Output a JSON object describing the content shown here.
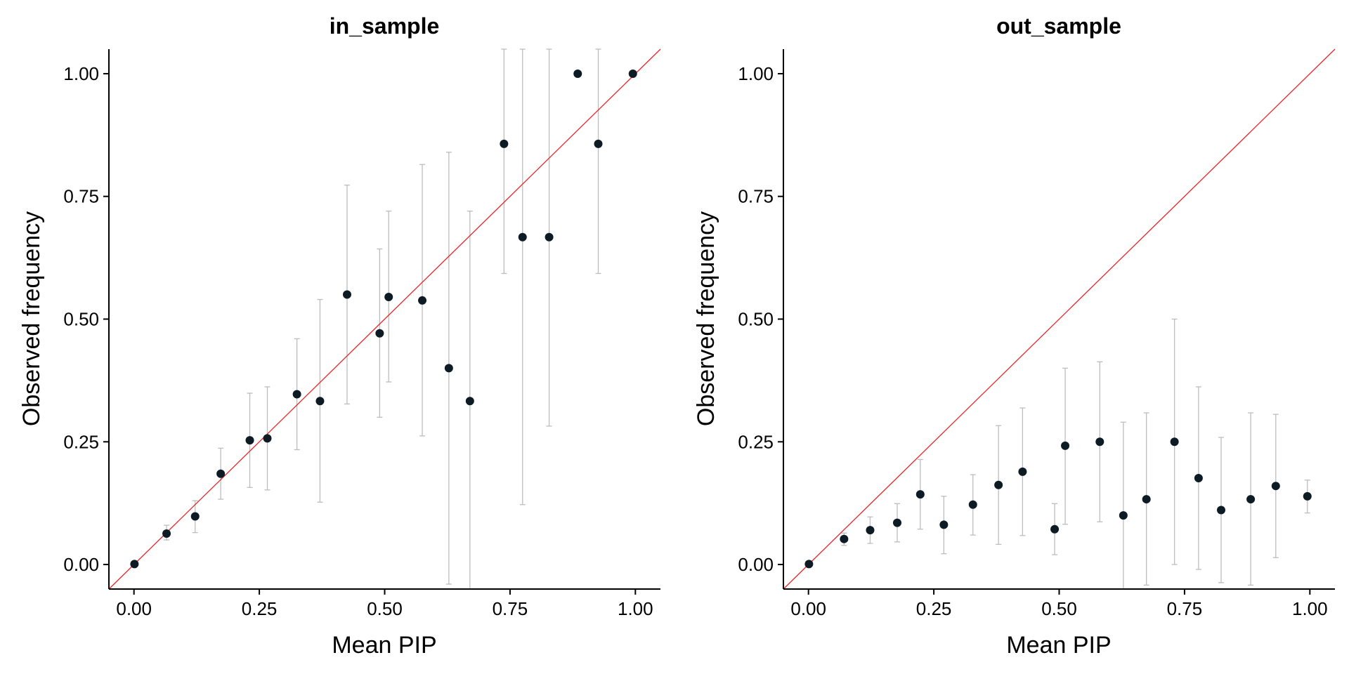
{
  "chart_data": [
    {
      "type": "scatter",
      "title": "in_sample",
      "xlabel": "Mean PIP",
      "ylabel": "Observed frequency",
      "xlim": [
        -0.05,
        1.05
      ],
      "ylim": [
        -0.05,
        1.05
      ],
      "xticks": [
        "0.00",
        "0.25",
        "0.50",
        "0.75",
        "1.00"
      ],
      "yticks": [
        "0.00",
        "0.25",
        "0.50",
        "0.75",
        "1.00"
      ],
      "grid": false,
      "reference_line": "y = x",
      "colors": {
        "points": "#0d1b24",
        "error_bars": "#bdbdbd",
        "reference": "#e8262b"
      },
      "points": [
        {
          "x": 0.001,
          "y": 0.001,
          "ymin": null,
          "ymax": null
        },
        {
          "x": 0.065,
          "y": 0.063,
          "ymin": 0.05,
          "ymax": 0.08
        },
        {
          "x": 0.122,
          "y": 0.098,
          "ymin": 0.065,
          "ymax": 0.13
        },
        {
          "x": 0.173,
          "y": 0.185,
          "ymin": 0.133,
          "ymax": 0.237
        },
        {
          "x": 0.231,
          "y": 0.253,
          "ymin": 0.157,
          "ymax": 0.349
        },
        {
          "x": 0.266,
          "y": 0.257,
          "ymin": 0.152,
          "ymax": 0.362
        },
        {
          "x": 0.325,
          "y": 0.347,
          "ymin": 0.234,
          "ymax": 0.46
        },
        {
          "x": 0.371,
          "y": 0.333,
          "ymin": 0.127,
          "ymax": 0.54
        },
        {
          "x": 0.425,
          "y": 0.55,
          "ymin": 0.327,
          "ymax": 0.773
        },
        {
          "x": 0.49,
          "y": 0.471,
          "ymin": 0.3,
          "ymax": 0.643
        },
        {
          "x": 0.508,
          "y": 0.545,
          "ymin": 0.372,
          "ymax": 0.72
        },
        {
          "x": 0.575,
          "y": 0.538,
          "ymin": 0.262,
          "ymax": 0.815
        },
        {
          "x": 0.628,
          "y": 0.4,
          "ymin": -0.04,
          "ymax": 0.84
        },
        {
          "x": 0.67,
          "y": 0.333,
          "ymin": -0.05,
          "ymax": 0.72
        },
        {
          "x": 0.738,
          "y": 0.857,
          "ymin": 0.593,
          "ymax": 1.05
        },
        {
          "x": 0.775,
          "y": 0.667,
          "ymin": 0.122,
          "ymax": 1.05
        },
        {
          "x": 0.828,
          "y": 0.667,
          "ymin": 0.282,
          "ymax": 1.05
        },
        {
          "x": 0.885,
          "y": 1.0,
          "ymin": null,
          "ymax": null
        },
        {
          "x": 0.926,
          "y": 0.857,
          "ymin": 0.593,
          "ymax": 1.05
        },
        {
          "x": 0.995,
          "y": 1.0,
          "ymin": null,
          "ymax": null
        }
      ]
    },
    {
      "type": "scatter",
      "title": "out_sample",
      "xlabel": "Mean PIP",
      "ylabel": "Observed frequency",
      "xlim": [
        -0.05,
        1.05
      ],
      "ylim": [
        -0.05,
        1.05
      ],
      "xticks": [
        "0.00",
        "0.25",
        "0.50",
        "0.75",
        "1.00"
      ],
      "yticks": [
        "0.00",
        "0.25",
        "0.50",
        "0.75",
        "1.00"
      ],
      "grid": false,
      "reference_line": "y = x",
      "colors": {
        "points": "#0d1b24",
        "error_bars": "#bdbdbd",
        "reference": "#e8262b"
      },
      "points": [
        {
          "x": 0.001,
          "y": 0.001,
          "ymin": null,
          "ymax": null
        },
        {
          "x": 0.071,
          "y": 0.052,
          "ymin": 0.039,
          "ymax": 0.064
        },
        {
          "x": 0.123,
          "y": 0.07,
          "ymin": 0.043,
          "ymax": 0.097
        },
        {
          "x": 0.177,
          "y": 0.085,
          "ymin": 0.046,
          "ymax": 0.124
        },
        {
          "x": 0.223,
          "y": 0.143,
          "ymin": 0.072,
          "ymax": 0.214
        },
        {
          "x": 0.27,
          "y": 0.081,
          "ymin": 0.022,
          "ymax": 0.139
        },
        {
          "x": 0.328,
          "y": 0.122,
          "ymin": 0.06,
          "ymax": 0.183
        },
        {
          "x": 0.379,
          "y": 0.162,
          "ymin": 0.041,
          "ymax": 0.283
        },
        {
          "x": 0.427,
          "y": 0.189,
          "ymin": 0.059,
          "ymax": 0.319
        },
        {
          "x": 0.491,
          "y": 0.072,
          "ymin": 0.02,
          "ymax": 0.124
        },
        {
          "x": 0.512,
          "y": 0.242,
          "ymin": 0.082,
          "ymax": 0.4
        },
        {
          "x": 0.581,
          "y": 0.25,
          "ymin": 0.087,
          "ymax": 0.413
        },
        {
          "x": 0.628,
          "y": 0.1,
          "ymin": -0.05,
          "ymax": 0.29
        },
        {
          "x": 0.674,
          "y": 0.133,
          "ymin": -0.042,
          "ymax": 0.309
        },
        {
          "x": 0.73,
          "y": 0.25,
          "ymin": 0.0,
          "ymax": 0.5
        },
        {
          "x": 0.778,
          "y": 0.176,
          "ymin": -0.01,
          "ymax": 0.362
        },
        {
          "x": 0.823,
          "y": 0.111,
          "ymin": -0.037,
          "ymax": 0.259
        },
        {
          "x": 0.882,
          "y": 0.133,
          "ymin": -0.042,
          "ymax": 0.309
        },
        {
          "x": 0.932,
          "y": 0.16,
          "ymin": 0.014,
          "ymax": 0.306
        },
        {
          "x": 0.995,
          "y": 0.139,
          "ymin": 0.105,
          "ymax": 0.172
        }
      ]
    }
  ]
}
